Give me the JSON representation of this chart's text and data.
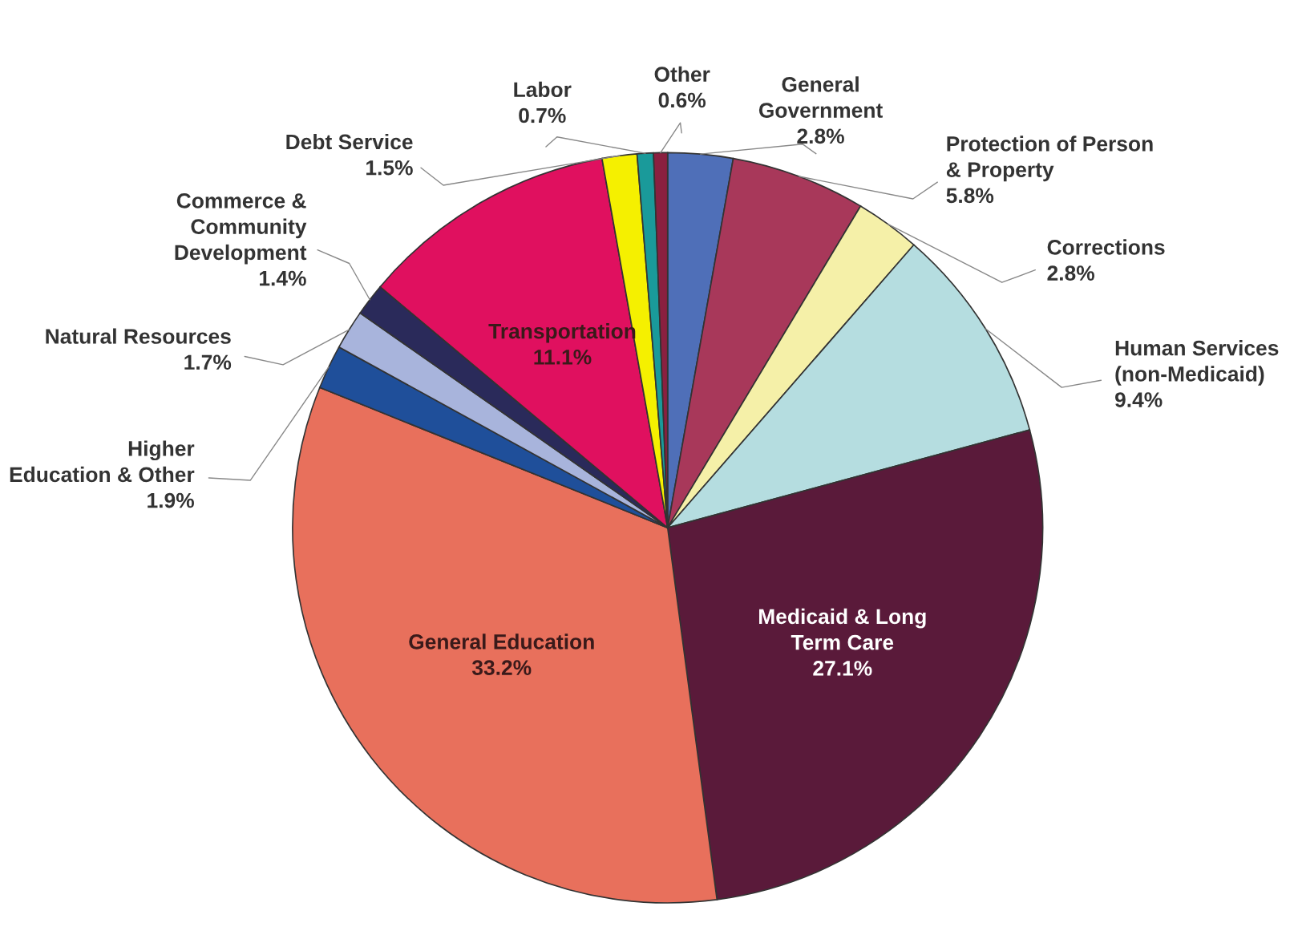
{
  "chart_data": {
    "type": "pie",
    "categories": [
      "General\nGovernment",
      "Protection of Person\n& Property",
      "Corrections",
      "Human Services\n(non-Medicaid)",
      "Medicaid & Long\nTerm Care",
      "General Education",
      "Higher\nEducation & Other",
      "Natural Resources",
      "Commerce &\nCommunity\nDevelopment",
      "Transportation",
      "Debt Service",
      "Labor",
      "Other"
    ],
    "values": [
      2.8,
      5.8,
      2.8,
      9.4,
      27.1,
      33.2,
      1.9,
      1.7,
      1.4,
      11.1,
      1.5,
      0.7,
      0.6
    ],
    "colors": [
      "#4f6fb8",
      "#a8385a",
      "#f5f0a8",
      "#b5dde0",
      "#5a1a3a",
      "#e8705c",
      "#1f4f9a",
      "#a8b4dc",
      "#2a2a5a",
      "#e0105f",
      "#f5f000",
      "#1a9a9a",
      "#8a2040"
    ],
    "value_labels": [
      "2.8%",
      "5.8%",
      "2.8%",
      "9.4%",
      "27.1%",
      "33.2%",
      "1.9%",
      "1.7%",
      "1.4%",
      "11.1%",
      "1.5%",
      "0.7%",
      "0.6%"
    ]
  }
}
